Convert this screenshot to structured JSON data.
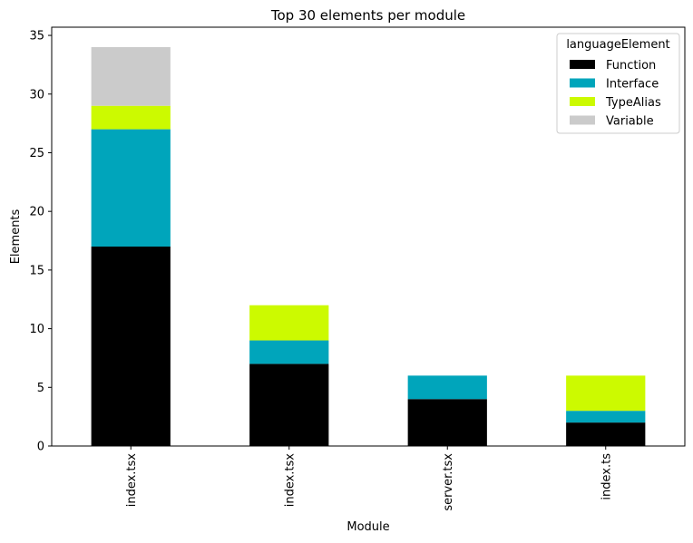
{
  "chart_data": {
    "type": "bar",
    "stacked": true,
    "title": "Top 30 elements per module",
    "xlabel": "Module",
    "ylabel": "Elements",
    "categories": [
      "index.tsx",
      "index.tsx",
      "server.tsx",
      "index.ts"
    ],
    "ylim": [
      0,
      35.7
    ],
    "yticks": [
      0,
      5,
      10,
      15,
      20,
      25,
      30,
      35
    ],
    "grid": false,
    "legend_title": "languageElement",
    "legend_position": "top-right",
    "series": [
      {
        "name": "Function",
        "color": "#000000",
        "values": [
          17,
          7,
          4,
          2
        ]
      },
      {
        "name": "Interface",
        "color": "#00a5bb",
        "values": [
          10,
          2,
          2,
          1
        ]
      },
      {
        "name": "TypeAlias",
        "color": "#ccfa00",
        "values": [
          2,
          3,
          0,
          3
        ]
      },
      {
        "name": "Variable",
        "color": "#cbcbcb",
        "values": [
          5,
          0,
          0,
          0
        ]
      }
    ]
  }
}
